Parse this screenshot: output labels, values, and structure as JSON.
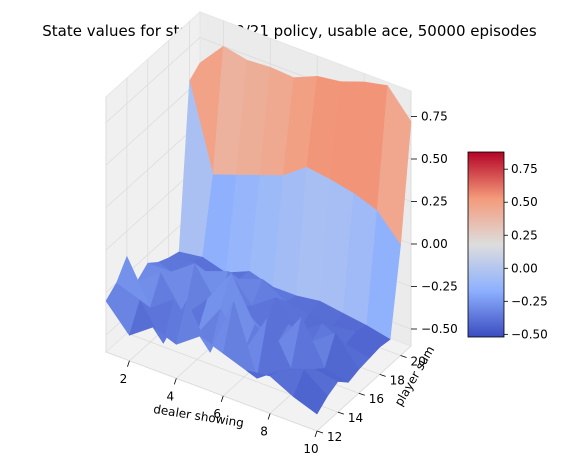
{
  "chart_data": {
    "type": "surface3d",
    "title": "State values for stay on 20/21 policy, usable ace, 50000 episodes",
    "xlabel": "dealer showing",
    "ylabel": "player sum",
    "zlabel": "",
    "x": [
      1,
      2,
      3,
      4,
      5,
      6,
      7,
      8,
      9,
      10
    ],
    "y": [
      12,
      13,
      14,
      15,
      16,
      17,
      18,
      19,
      20,
      21
    ],
    "x_ticks": [
      "2",
      "4",
      "6",
      "8",
      "10"
    ],
    "y_ticks": [
      "12",
      "14",
      "16",
      "18",
      "20"
    ],
    "z_ticks": [
      "−0.50",
      "−0.25",
      "0.00",
      "0.25",
      "0.50",
      "0.75"
    ],
    "xlim": [
      1,
      10
    ],
    "ylim": [
      12,
      21
    ],
    "zlim": [
      -0.6,
      0.9
    ],
    "z": [
      [
        -0.3,
        -0.45,
        -0.35,
        -0.4,
        -0.3,
        -0.35,
        -0.4,
        -0.38,
        -0.45,
        -0.5
      ],
      [
        -0.25,
        -0.3,
        -0.5,
        -0.2,
        -0.45,
        -0.1,
        -0.5,
        -0.4,
        -0.35,
        -0.45
      ],
      [
        -0.15,
        -0.4,
        -0.3,
        -0.45,
        -0.25,
        -0.45,
        -0.2,
        -0.45,
        -0.4,
        -0.42
      ],
      [
        -0.35,
        -0.25,
        -0.45,
        -0.3,
        -0.1,
        -0.35,
        -0.4,
        -0.2,
        -0.45,
        -0.48
      ],
      [
        -0.3,
        -0.3,
        -0.2,
        -0.4,
        -0.35,
        -0.45,
        -0.35,
        -0.4,
        -0.3,
        -0.46
      ],
      [
        -0.35,
        -0.4,
        -0.3,
        -0.25,
        -0.4,
        -0.3,
        -0.45,
        -0.35,
        -0.42,
        -0.45
      ],
      [
        -0.38,
        -0.35,
        -0.4,
        -0.35,
        -0.3,
        -0.38,
        -0.4,
        -0.42,
        -0.4,
        -0.44
      ],
      [
        -0.4,
        -0.38,
        -0.42,
        -0.36,
        -0.4,
        -0.4,
        -0.38,
        -0.4,
        -0.42,
        -0.45
      ],
      [
        0.55,
        0.05,
        0.1,
        0.15,
        0.2,
        0.3,
        0.28,
        0.25,
        0.2,
        0.05
      ],
      [
        0.6,
        0.75,
        0.72,
        0.73,
        0.72,
        0.78,
        0.8,
        0.85,
        0.88,
        0.72
      ]
    ],
    "colormap": "coolwarm",
    "colorbar": {
      "min": -0.52,
      "max": 0.88,
      "ticks": [
        "−0.50",
        "−0.25",
        "0.00",
        "0.25",
        "0.50",
        "0.75"
      ]
    },
    "colors": {
      "low": "#3b4cc0",
      "mid": "#dddddd",
      "high": "#b40426",
      "pane": "#f2f2f2",
      "grid": "#dcdcdc"
    }
  }
}
